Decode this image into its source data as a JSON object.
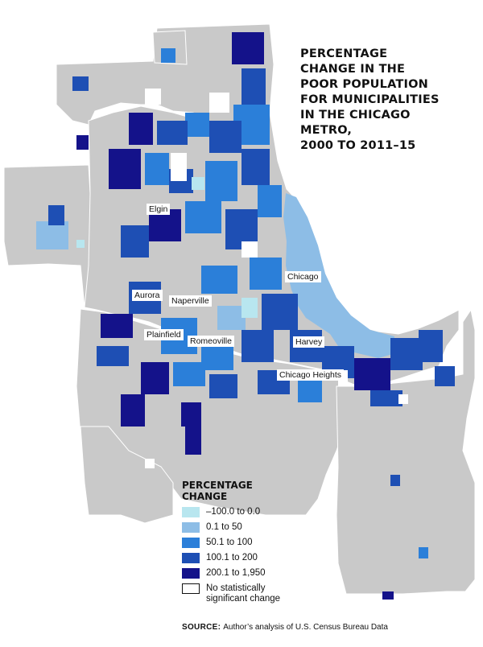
{
  "title_lines": [
    "PERCENTAGE",
    "CHANGE IN THE",
    "POOR POPULATION",
    "FOR MUNICIPALITIES",
    "IN THE CHICAGO",
    "METRO,",
    "2000 TO 2011–15"
  ],
  "colors": {
    "county_gray": "#c9c9c9",
    "lake_white": "#ffffff",
    "c1": "#b8e6ef",
    "c2": "#8dbde6",
    "c3": "#2b7fd9",
    "c4": "#1e4fb4",
    "c5": "#14128a",
    "nochange": "#ffffff"
  },
  "cities": [
    {
      "name": "Elgin",
      "class": "200.1 to 1,950"
    },
    {
      "name": "Chicago",
      "class": "0.1 to 50"
    },
    {
      "name": "Aurora",
      "class": "100.1 to 200"
    },
    {
      "name": "Naperville",
      "class": "50.1 to 100"
    },
    {
      "name": "Plainfield",
      "class": "50.1 to 100"
    },
    {
      "name": "Romeoville",
      "class": "50.1 to 100"
    },
    {
      "name": "Harvey",
      "class": "100.1 to 200"
    },
    {
      "name": "Chicago Heights",
      "class": "200.1 to 1,950"
    }
  ],
  "legend": {
    "title_lines": [
      "PERCENTAGE",
      "CHANGE"
    ],
    "items": [
      {
        "label": "–100.0 to 0.0",
        "color": "#b8e6ef"
      },
      {
        "label": "0.1 to 50",
        "color": "#8dbde6"
      },
      {
        "label": "50.1 to 100",
        "color": "#2b7fd9"
      },
      {
        "label": "100.1 to 200",
        "color": "#1e4fb4"
      },
      {
        "label": "200.1 to 1,950",
        "color": "#14128a"
      }
    ],
    "nochange_lines": [
      "No statistically",
      "significant change"
    ]
  },
  "source": {
    "label": "SOURCE:",
    "text": "Author’s analysis of U.S. Census Bureau Data"
  }
}
